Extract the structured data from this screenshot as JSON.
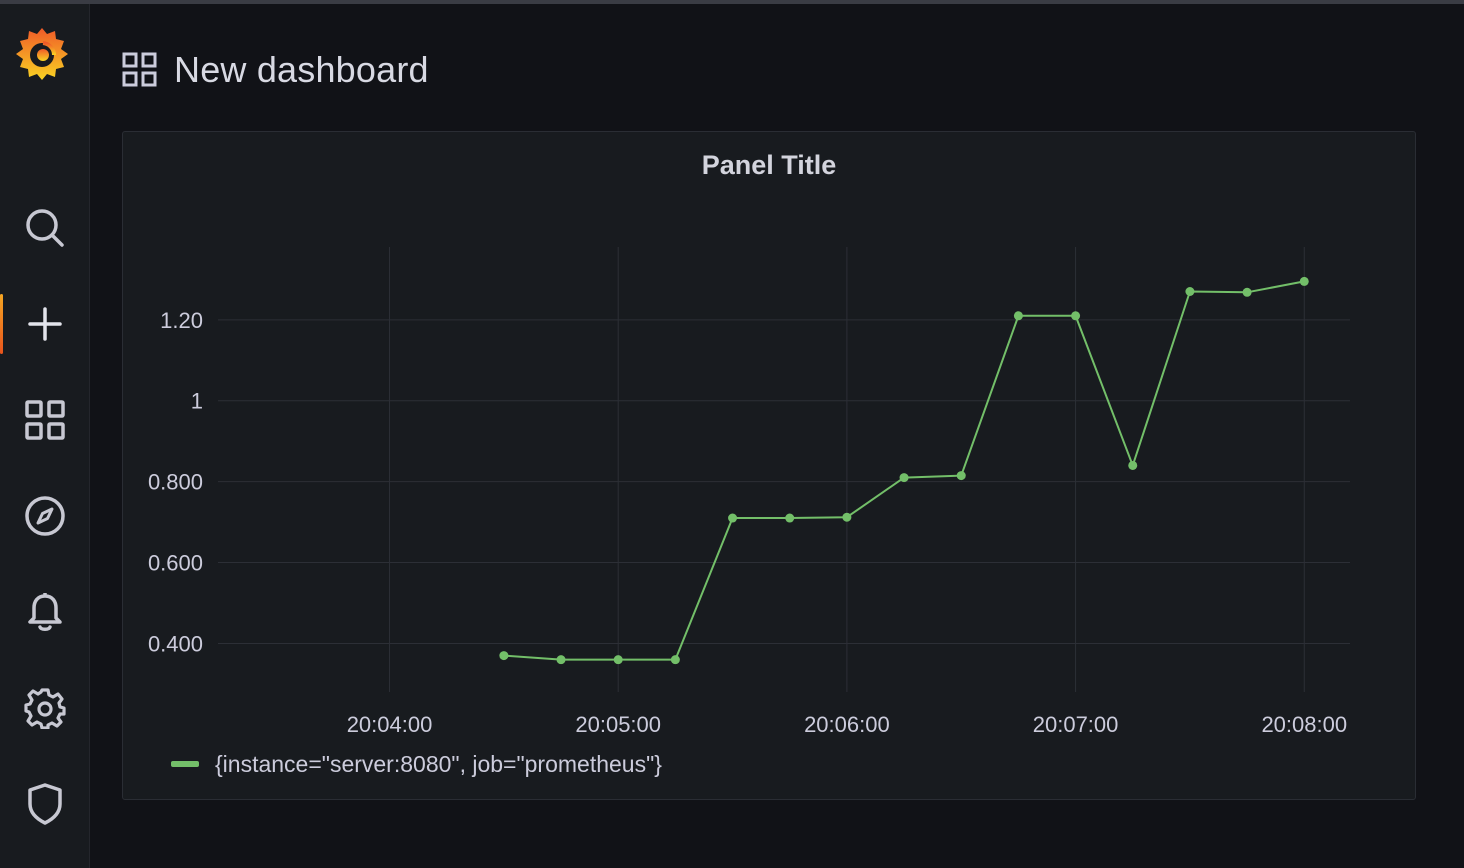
{
  "header": {
    "title": "New dashboard",
    "icon": "dashboard-grid-icon"
  },
  "sidebar": {
    "items": [
      {
        "name": "grafana-logo",
        "icon": "grafana-logo-icon"
      },
      {
        "name": "search",
        "icon": "search-icon"
      },
      {
        "name": "create",
        "icon": "plus-icon",
        "active": true
      },
      {
        "name": "dashboards",
        "icon": "grid-icon"
      },
      {
        "name": "explore",
        "icon": "compass-icon"
      },
      {
        "name": "alerting",
        "icon": "bell-icon"
      },
      {
        "name": "configuration",
        "icon": "gear-icon"
      },
      {
        "name": "server-admin",
        "icon": "shield-icon"
      }
    ]
  },
  "panel": {
    "title": "Panel Title"
  },
  "colors": {
    "series": "#73bf69",
    "accent": "#f5a623"
  },
  "chart_data": {
    "type": "line",
    "title": "Panel Title",
    "x_ticks": [
      "20:04:00",
      "20:05:00",
      "20:06:00",
      "20:07:00",
      "20:08:00"
    ],
    "y_ticks": [
      "0.400",
      "0.600",
      "0.800",
      "1",
      "1.20"
    ],
    "y_tick_values": [
      0.4,
      0.6,
      0.8,
      1.0,
      1.2
    ],
    "xlim": [
      "20:03:15",
      "20:08:12"
    ],
    "ylim": [
      0.28,
      1.38
    ],
    "grid": true,
    "legend_position": "bottom-left",
    "series": [
      {
        "name": "{instance=\"server:8080\", job=\"prometheus\"}",
        "color": "#73bf69",
        "x": [
          "20:04:30",
          "20:04:45",
          "20:05:00",
          "20:05:15",
          "20:05:30",
          "20:05:45",
          "20:06:00",
          "20:06:15",
          "20:06:30",
          "20:06:45",
          "20:07:00",
          "20:07:15",
          "20:07:30",
          "20:07:45",
          "20:08:00"
        ],
        "y": [
          0.37,
          0.36,
          0.36,
          0.36,
          0.71,
          0.71,
          0.712,
          0.81,
          0.815,
          1.21,
          1.21,
          0.84,
          1.27,
          1.268,
          1.295
        ]
      }
    ]
  }
}
